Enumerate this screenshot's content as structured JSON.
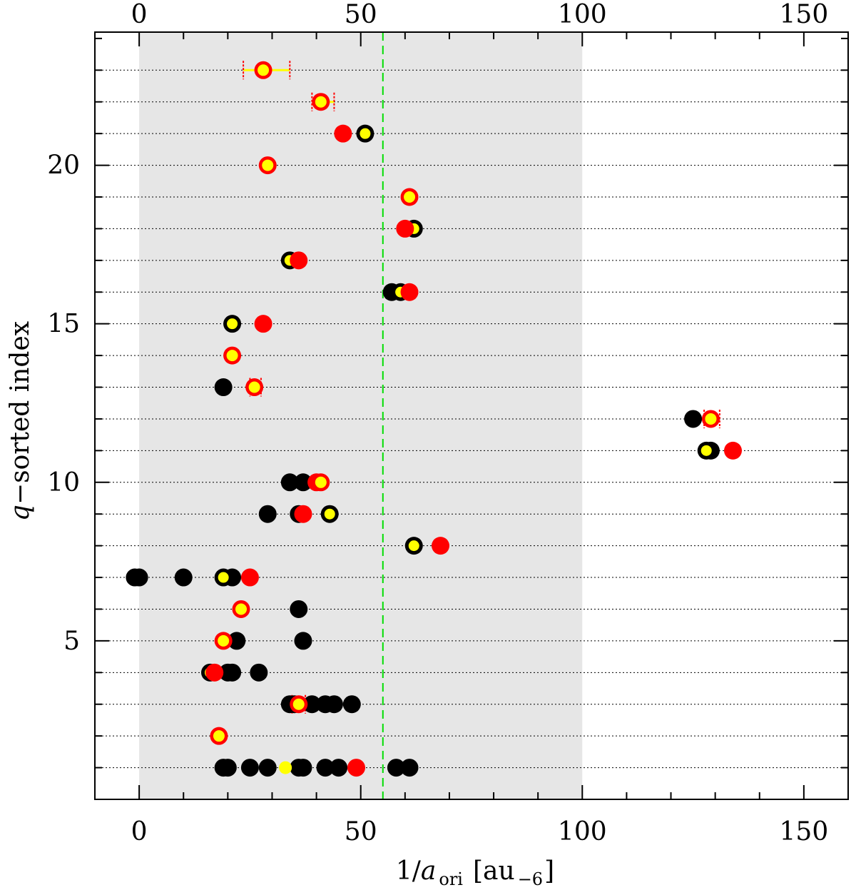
{
  "chart_data": {
    "type": "scatter",
    "title": "",
    "xlabel": {
      "prefix": "1/",
      "var": "a",
      "sub": "ori",
      "unit": "[au",
      "unit_sub": "−6",
      "unit_close": "]"
    },
    "ylabel": {
      "var": "q",
      "rest": "−sorted index"
    },
    "xlim": [
      -10,
      160
    ],
    "ylim": [
      0,
      24.2
    ],
    "xticks_major": [
      0,
      50,
      100,
      150
    ],
    "xtick_labels": [
      "0",
      "50",
      "100",
      "150"
    ],
    "xticks_minor_step": 10,
    "yticks_major": [
      5,
      10,
      15,
      20
    ],
    "ytick_labels": [
      "5",
      "10",
      "15",
      "20"
    ],
    "top_xticks_major": [
      0,
      50,
      100,
      150
    ],
    "top_xtick_labels": [
      "0",
      "50",
      "100",
      "150"
    ],
    "shaded_region": [
      0,
      100
    ],
    "vline": 55,
    "gridlines_y": [
      1,
      2,
      3,
      4,
      5,
      6,
      7,
      8,
      9,
      10,
      11,
      12,
      13,
      14,
      15,
      16,
      17,
      18,
      19,
      20,
      21,
      22,
      23
    ],
    "colors": {
      "black": "#000000",
      "red": "#ff0000",
      "yellow": "#ffff00",
      "shade": "#e6e6e6",
      "vline": "#00dd00"
    },
    "series": [
      {
        "style": "black",
        "points": [
          {
            "x": 19,
            "y": 1
          },
          {
            "x": 20,
            "y": 1
          },
          {
            "x": 25,
            "y": 1
          },
          {
            "x": 29,
            "y": 1
          },
          {
            "x": 36,
            "y": 1
          },
          {
            "x": 37,
            "y": 1
          },
          {
            "x": 42,
            "y": 1
          },
          {
            "x": 45,
            "y": 1
          },
          {
            "x": 58,
            "y": 1
          },
          {
            "x": 61,
            "y": 1
          },
          {
            "x": 34,
            "y": 3
          },
          {
            "x": 35,
            "y": 3
          },
          {
            "x": 39,
            "y": 3
          },
          {
            "x": 42,
            "y": 3
          },
          {
            "x": 44,
            "y": 3
          },
          {
            "x": 48,
            "y": 3
          },
          {
            "x": 20,
            "y": 4
          },
          {
            "x": 21,
            "y": 4
          },
          {
            "x": 27,
            "y": 4
          },
          {
            "x": 22,
            "y": 5
          },
          {
            "x": 37,
            "y": 5
          },
          {
            "x": 36,
            "y": 6
          },
          {
            "x": -1,
            "y": 7
          },
          {
            "x": 0,
            "y": 7
          },
          {
            "x": 10,
            "y": 7
          },
          {
            "x": 21,
            "y": 7
          },
          {
            "x": 29,
            "y": 9
          },
          {
            "x": 36,
            "y": 9
          },
          {
            "x": 34,
            "y": 10
          },
          {
            "x": 37,
            "y": 10
          },
          {
            "x": 129,
            "y": 11
          },
          {
            "x": 125,
            "y": 12
          },
          {
            "x": 19,
            "y": 13
          },
          {
            "x": 57,
            "y": 16
          }
        ]
      },
      {
        "style": "ringed-black",
        "points": [
          {
            "x": 16,
            "y": 4
          },
          {
            "x": 19,
            "y": 7
          },
          {
            "x": 62,
            "y": 8
          },
          {
            "x": 43,
            "y": 9
          },
          {
            "x": 128,
            "y": 11
          },
          {
            "x": 21,
            "y": 15
          },
          {
            "x": 59,
            "y": 16
          },
          {
            "x": 34,
            "y": 17
          },
          {
            "x": 62,
            "y": 18
          },
          {
            "x": 51,
            "y": 21
          }
        ]
      },
      {
        "style": "red",
        "points": [
          {
            "x": 49,
            "y": 1
          },
          {
            "x": 17,
            "y": 4
          },
          {
            "x": 25,
            "y": 7
          },
          {
            "x": 68,
            "y": 8
          },
          {
            "x": 37,
            "y": 9
          },
          {
            "x": 40,
            "y": 10
          },
          {
            "x": 134,
            "y": 11
          },
          {
            "x": 28,
            "y": 15
          },
          {
            "x": 61,
            "y": 16
          },
          {
            "x": 36,
            "y": 17
          },
          {
            "x": 60,
            "y": 18
          },
          {
            "x": 46,
            "y": 21
          }
        ]
      },
      {
        "style": "ringed-red",
        "points": [
          {
            "x": 18,
            "y": 2
          },
          {
            "x": 36,
            "y": 3
          },
          {
            "x": 19,
            "y": 5
          },
          {
            "x": 23,
            "y": 6
          },
          {
            "x": 41,
            "y": 10
          },
          {
            "x": 129,
            "y": 12
          },
          {
            "x": 26,
            "y": 13
          },
          {
            "x": 21,
            "y": 14
          },
          {
            "x": 61,
            "y": 19
          },
          {
            "x": 29,
            "y": 20
          },
          {
            "x": 41,
            "y": 22
          },
          {
            "x": 28,
            "y": 23
          }
        ]
      },
      {
        "style": "yellow",
        "points": [
          {
            "x": 33,
            "y": 1
          }
        ]
      }
    ],
    "error_bars": [
      {
        "y": 23,
        "x_low": 23.5,
        "x_high": 34
      },
      {
        "y": 22,
        "x_low": 39,
        "x_high": 44
      },
      {
        "y": 3,
        "x_low": 34.5,
        "x_high": 37.5
      },
      {
        "y": 12,
        "x_low": 127.5,
        "x_high": 131
      },
      {
        "y": 13,
        "x_low": 25,
        "x_high": 27.5
      }
    ]
  }
}
